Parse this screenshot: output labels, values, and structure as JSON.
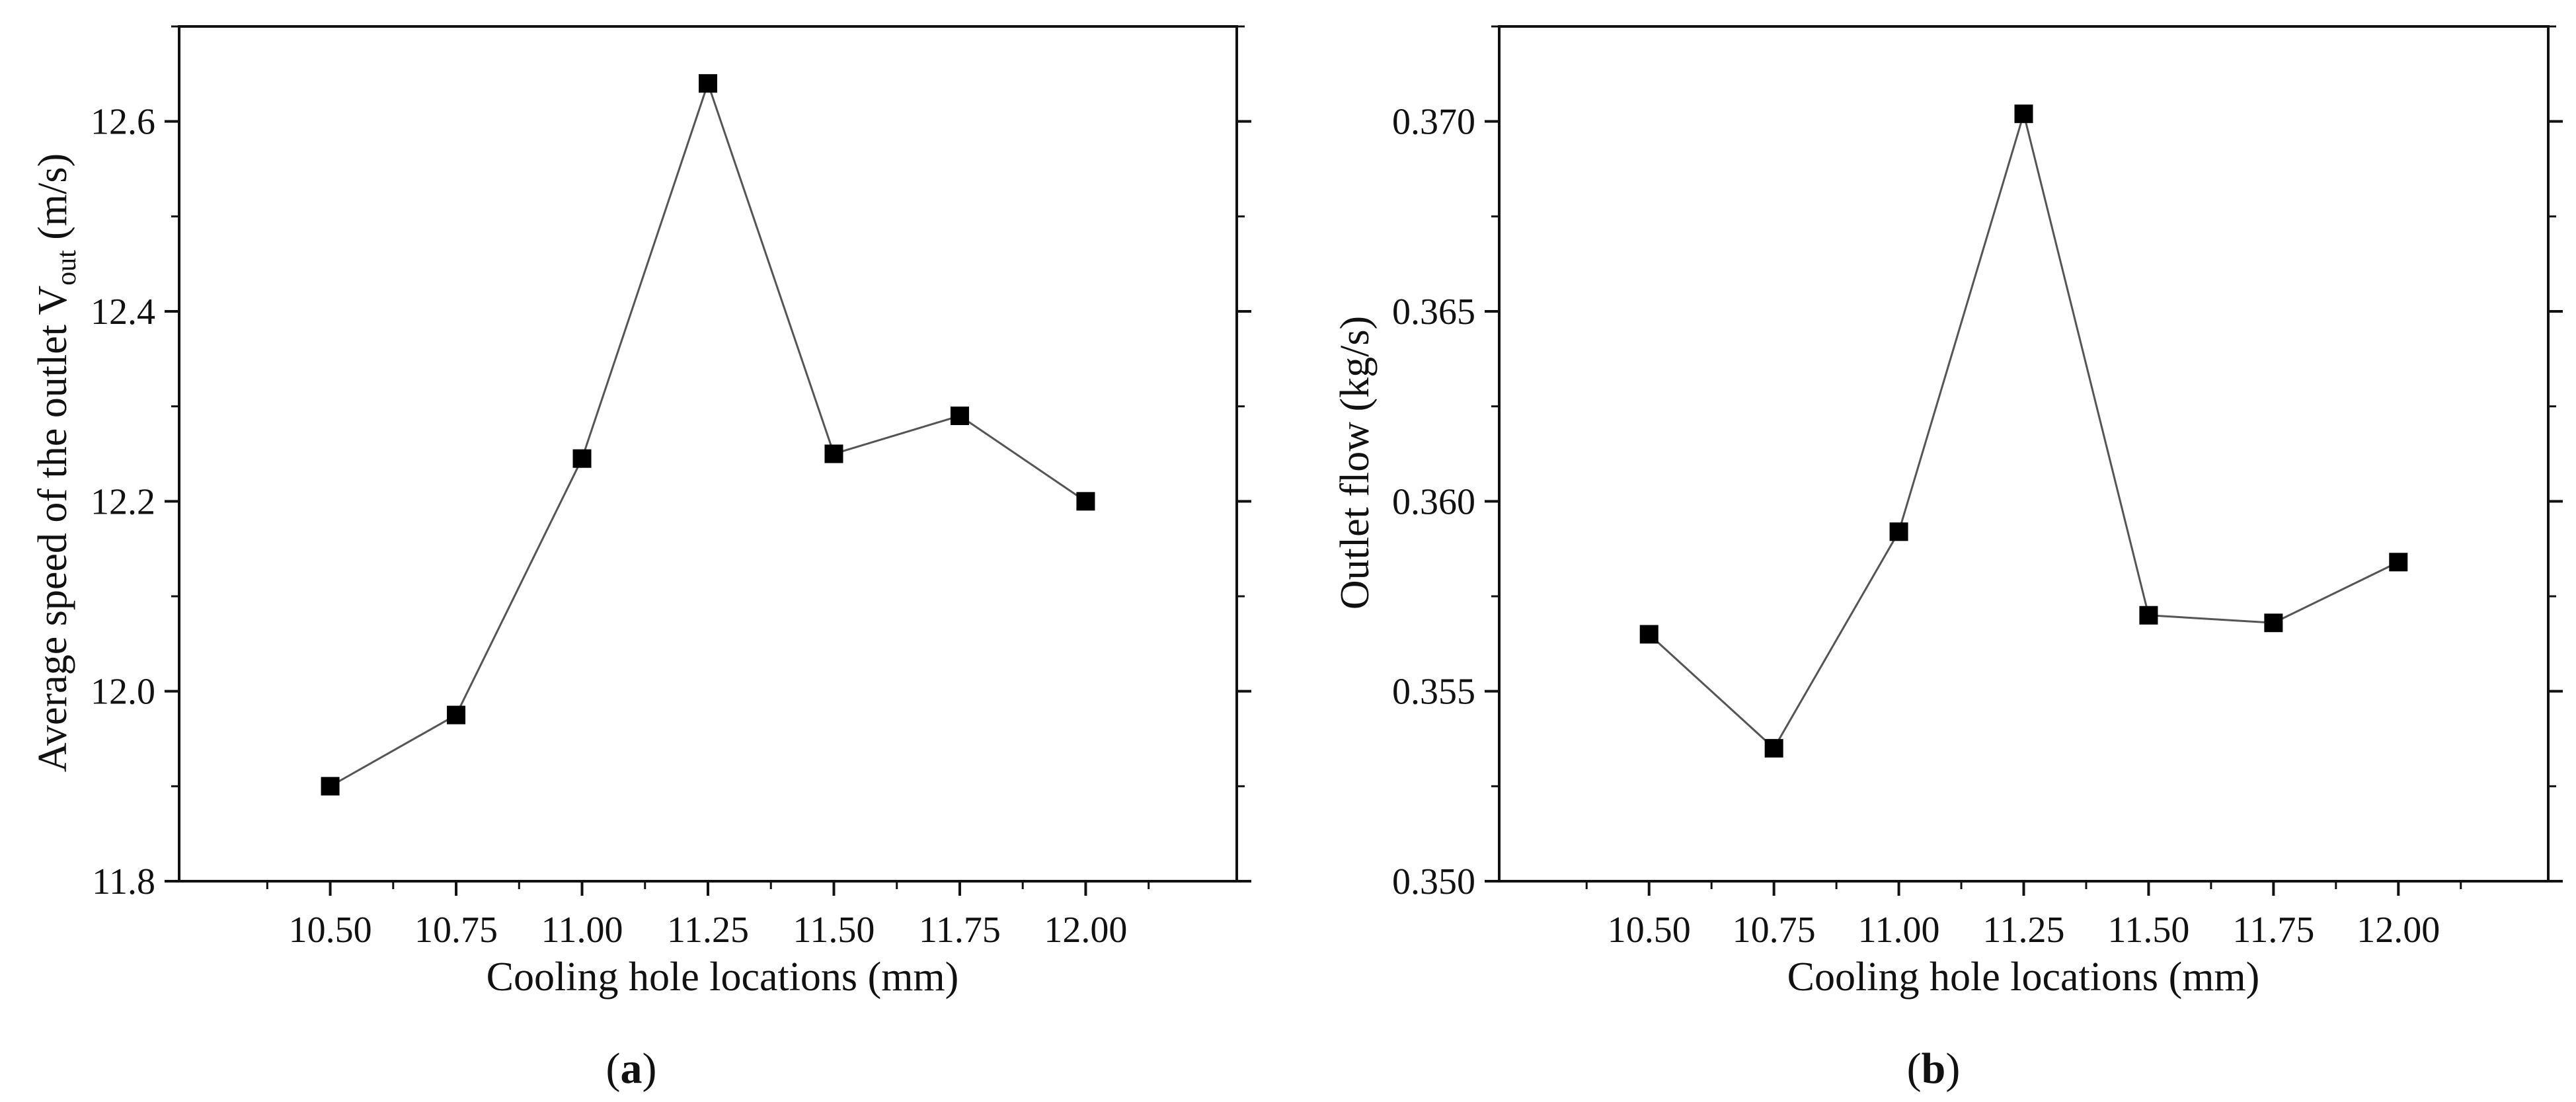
{
  "chart_data": [
    {
      "panel": "a",
      "caption": "(a)",
      "type": "line",
      "markers": "square",
      "title": "",
      "xlabel": "Cooling hole locations (mm)",
      "ylabel_main": "Average speed of the outlet V",
      "ylabel_sub": "out",
      "ylabel_unit": " (m/s)",
      "xlim": [
        10.2,
        12.3
      ],
      "ylim": [
        11.8,
        12.7
      ],
      "xticks": [
        10.5,
        10.75,
        11.0,
        11.25,
        11.5,
        11.75,
        12.0
      ],
      "xtick_labels": [
        "10.50",
        "10.75",
        "11.00",
        "11.25",
        "11.50",
        "11.75",
        "12.00"
      ],
      "yticks": [
        11.8,
        12.0,
        12.2,
        12.4,
        12.6
      ],
      "ytick_labels": [
        "11.8",
        "12.0",
        "12.2",
        "12.4",
        "12.6"
      ],
      "x": [
        10.5,
        10.75,
        11.0,
        11.25,
        11.5,
        11.75,
        12.0
      ],
      "y": [
        11.9,
        11.975,
        12.245,
        12.64,
        12.25,
        12.29,
        12.2
      ]
    },
    {
      "panel": "b",
      "caption": "(b)",
      "type": "line",
      "markers": "square",
      "title": "",
      "xlabel": "Cooling hole locations (mm)",
      "ylabel_main": "Outlet flow (kg/s)",
      "ylabel_sub": "",
      "ylabel_unit": "",
      "xlim": [
        10.2,
        12.3
      ],
      "ylim": [
        0.35,
        0.3725
      ],
      "xticks": [
        10.5,
        10.75,
        11.0,
        11.25,
        11.5,
        11.75,
        12.0
      ],
      "xtick_labels": [
        "10.50",
        "10.75",
        "11.00",
        "11.25",
        "11.50",
        "11.75",
        "12.00"
      ],
      "yticks": [
        0.35,
        0.355,
        0.36,
        0.365,
        0.37
      ],
      "ytick_labels": [
        "0.350",
        "0.355",
        "0.360",
        "0.365",
        "0.370"
      ],
      "x": [
        10.5,
        10.75,
        11.0,
        11.25,
        11.5,
        11.75,
        12.0
      ],
      "y": [
        0.3565,
        0.3535,
        0.3592,
        0.3702,
        0.357,
        0.3568,
        0.3584
      ]
    }
  ]
}
